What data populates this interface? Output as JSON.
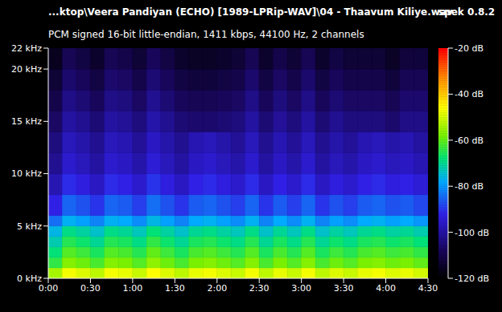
{
  "chart_data": {
    "type": "heatmap",
    "title": "...ktop\\Veera Pandiyan (ECHO) [1989-LPRip-WAV]\\04 - Thaavum Kiliye.wav",
    "app_label": "spek 0.8.2",
    "subtitle": "PCM signed 16-bit little-endian, 1411 kbps, 44100 Hz, 2 channels",
    "xlim": [
      0,
      270
    ],
    "xticks": [
      {
        "value": 0,
        "label": "0:00"
      },
      {
        "value": 30,
        "label": "0:30"
      },
      {
        "value": 60,
        "label": "1:00"
      },
      {
        "value": 90,
        "label": "1:30"
      },
      {
        "value": 120,
        "label": "2:00"
      },
      {
        "value": 150,
        "label": "2:30"
      },
      {
        "value": 180,
        "label": "3:00"
      },
      {
        "value": 210,
        "label": "3:30"
      },
      {
        "value": 240,
        "label": "4:00"
      },
      {
        "value": 270,
        "label": "4:30"
      }
    ],
    "ylim": [
      0,
      22
    ],
    "yticks": [
      {
        "value": 0,
        "label": "0 kHz"
      },
      {
        "value": 5,
        "label": "5 kHz"
      },
      {
        "value": 10,
        "label": "10 kHz"
      },
      {
        "value": 15,
        "label": "15 kHz"
      },
      {
        "value": 20,
        "label": "20 kHz"
      },
      {
        "value": 22,
        "label": "22 kHz"
      }
    ],
    "x_bins": [
      0,
      10,
      20,
      30,
      40,
      50,
      60,
      70,
      80,
      90,
      100,
      110,
      120,
      130,
      140,
      150,
      160,
      170,
      180,
      190,
      200,
      210,
      220,
      230,
      240,
      250,
      260,
      270
    ],
    "y_bins": [
      0,
      1,
      2,
      3,
      4,
      5,
      6,
      8,
      10,
      12,
      14,
      16,
      18,
      20,
      22
    ],
    "cells": [
      [
        -54,
        -47,
        -49,
        -52,
        -47,
        -48,
        -51,
        -46,
        -49,
        -52,
        -48,
        -47,
        -49,
        -51,
        -47,
        -52,
        -48,
        -51,
        -47,
        -52,
        -49,
        -51,
        -48,
        -47,
        -49,
        -48,
        -50
      ],
      [
        -64,
        -57,
        -59,
        -62,
        -57,
        -58,
        -61,
        -56,
        -59,
        -62,
        -58,
        -57,
        -59,
        -61,
        -57,
        -62,
        -58,
        -61,
        -57,
        -62,
        -59,
        -61,
        -58,
        -57,
        -59,
        -58,
        -60
      ],
      [
        -68,
        -61,
        -63,
        -66,
        -61,
        -62,
        -65,
        -60,
        -63,
        -66,
        -62,
        -61,
        -63,
        -65,
        -61,
        -66,
        -62,
        -65,
        -61,
        -66,
        -63,
        -65,
        -62,
        -61,
        -63,
        -62,
        -64
      ],
      [
        -72,
        -65,
        -67,
        -70,
        -65,
        -66,
        -69,
        -64,
        -67,
        -70,
        -66,
        -65,
        -67,
        -69,
        -65,
        -70,
        -66,
        -69,
        -65,
        -70,
        -67,
        -69,
        -66,
        -65,
        -67,
        -66,
        -68
      ],
      [
        -76,
        -69,
        -71,
        -74,
        -69,
        -70,
        -73,
        -68,
        -71,
        -74,
        -70,
        -69,
        -71,
        -73,
        -69,
        -74,
        -70,
        -73,
        -69,
        -74,
        -71,
        -73,
        -70,
        -69,
        -71,
        -70,
        -72
      ],
      [
        -84,
        -77,
        -79,
        -82,
        -77,
        -78,
        -81,
        -76,
        -79,
        -82,
        -78,
        -77,
        -79,
        -81,
        -77,
        -82,
        -78,
        -81,
        -77,
        -82,
        -79,
        -81,
        -78,
        -77,
        -79,
        -78,
        -80
      ],
      [
        -92,
        -85,
        -87,
        -90,
        -85,
        -86,
        -89,
        -84,
        -87,
        -90,
        -86,
        -85,
        -87,
        -89,
        -85,
        -90,
        -86,
        -89,
        -85,
        -90,
        -87,
        -89,
        -86,
        -85,
        -87,
        -86,
        -88
      ],
      [
        -98,
        -91,
        -93,
        -96,
        -91,
        -92,
        -95,
        -90,
        -93,
        -96,
        -92,
        -91,
        -93,
        -95,
        -91,
        -96,
        -92,
        -95,
        -91,
        -96,
        -93,
        -95,
        -92,
        -91,
        -93,
        -92,
        -94
      ],
      [
        -102,
        -95,
        -97,
        -100,
        -95,
        -96,
        -99,
        -94,
        -97,
        -100,
        -96,
        -95,
        -97,
        -99,
        -95,
        -100,
        -96,
        -99,
        -95,
        -100,
        -97,
        -99,
        -96,
        -95,
        -97,
        -96,
        -98
      ],
      [
        -104,
        -97,
        -99,
        -102,
        -97,
        -98,
        -101,
        -96,
        -99,
        -102,
        -98,
        -97,
        -99,
        -101,
        -97,
        -102,
        -98,
        -101,
        -97,
        -102,
        -99,
        -101,
        -98,
        -97,
        -99,
        -98,
        -100
      ],
      [
        -107,
        -100,
        -102,
        -105,
        -100,
        -101,
        -104,
        -99,
        -102,
        -105,
        -106,
        -106,
        -105,
        -104,
        -100,
        -105,
        -101,
        -104,
        -100,
        -105,
        -102,
        -104,
        -104,
        -104,
        -106,
        -103,
        -103
      ],
      [
        -110,
        -103,
        -105,
        -108,
        -103,
        -104,
        -107,
        -102,
        -105,
        -108,
        -109,
        -109,
        -108,
        -107,
        -103,
        -108,
        -104,
        -107,
        -103,
        -108,
        -105,
        -107,
        -107,
        -107,
        -109,
        -106,
        -106
      ],
      [
        -113,
        -106,
        -108,
        -111,
        -106,
        -107,
        -110,
        -105,
        -108,
        -111,
        -112,
        -112,
        -111,
        -110,
        -106,
        -111,
        -107,
        -110,
        -106,
        -111,
        -108,
        -110,
        -110,
        -110,
        -112,
        -109,
        -109
      ],
      [
        -116,
        -109,
        -111,
        -114,
        -109,
        -110,
        -113,
        -108,
        -111,
        -114,
        -115,
        -115,
        -114,
        -113,
        -109,
        -114,
        -110,
        -113,
        -109,
        -114,
        -111,
        -113,
        -113,
        -113,
        -115,
        -112,
        -112
      ]
    ],
    "color_range": [
      -120,
      -20
    ],
    "color_ticks": [
      {
        "value": -20,
        "label": "-20 dB"
      },
      {
        "value": -40,
        "label": "-40 dB"
      },
      {
        "value": -60,
        "label": "-60 dB"
      },
      {
        "value": -80,
        "label": "-80 dB"
      },
      {
        "value": -100,
        "label": "-100 dB"
      },
      {
        "value": -120,
        "label": "-120 dB"
      }
    ]
  }
}
